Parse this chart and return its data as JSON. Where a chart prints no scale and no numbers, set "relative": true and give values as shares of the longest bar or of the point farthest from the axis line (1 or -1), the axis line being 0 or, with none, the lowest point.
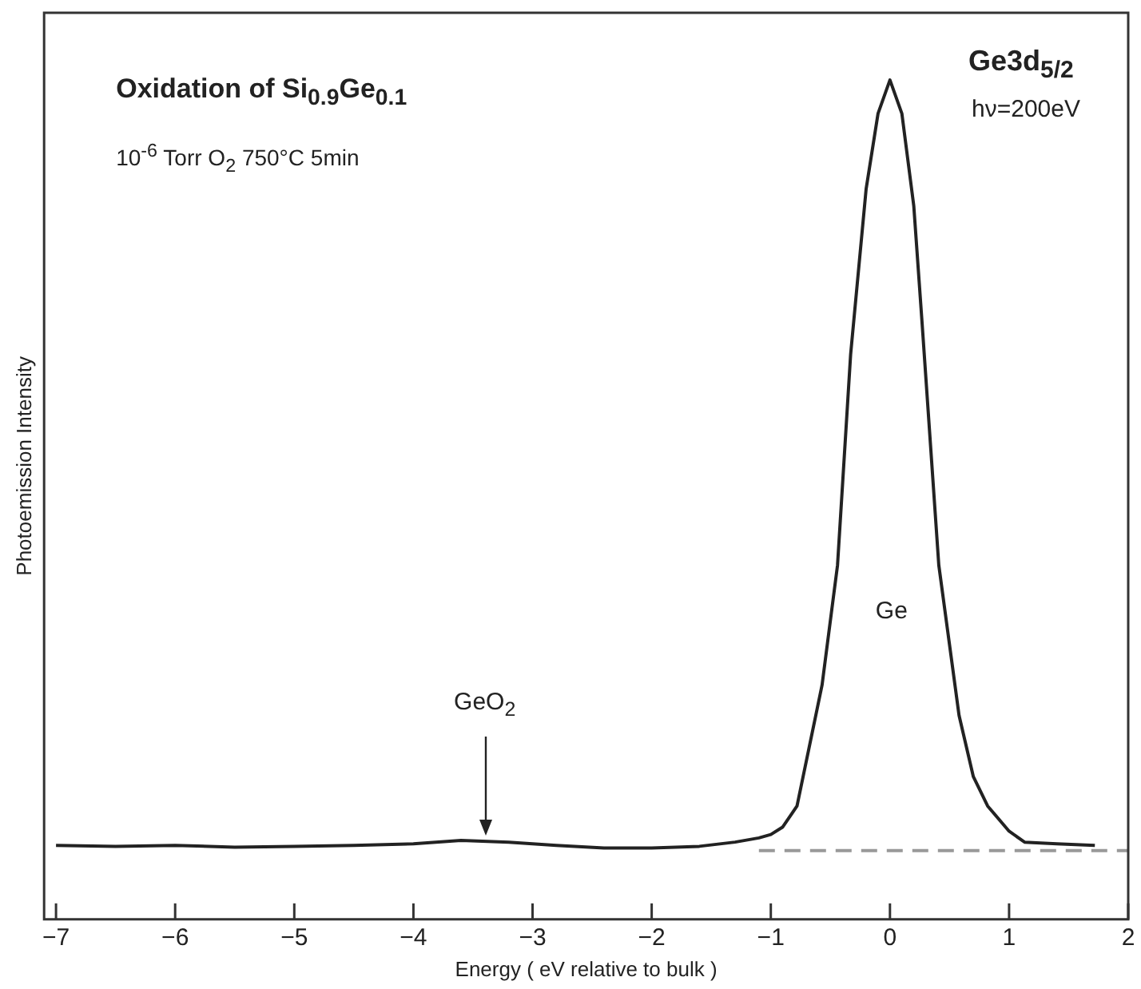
{
  "chart_data": {
    "type": "line",
    "title": "Oxidation of Si$_{0.9}$Ge$_{0.1}$",
    "subtitle": "10$^{-6}$ Torr O$_{2}$ 750°C 5min",
    "xlabel": "Energy ( eV relative to bulk )",
    "ylabel": "Photoemission Intensity",
    "relative": true,
    "xlim": [
      -7.1,
      2
    ],
    "xticks": [
      -7,
      -6,
      -5,
      -4,
      -3,
      -2,
      -1,
      0,
      1,
      2
    ],
    "legend": false,
    "grid": false,
    "marker": "none",
    "annotations": [
      "Ge3d$_{5/2}$",
      "hν=200eV",
      "Ge",
      "GeO$_{2}$"
    ],
    "series": [
      {
        "color": "#222222",
        "line_style": "solid",
        "x": [
          -7,
          -6.5,
          -6,
          -5.5,
          -5,
          -4.5,
          -4,
          -3.6,
          -3.2,
          -2.8,
          -2.4,
          -2,
          -1.6,
          -1.3,
          -1.1,
          -1,
          -0.9,
          -0.78,
          -0.57,
          -0.44,
          -0.33,
          -0.2,
          -0.1,
          0,
          0.1,
          0.2,
          0.27,
          0.41,
          0.58,
          0.7,
          0.82,
          1,
          1.13,
          1.4,
          1.72
        ],
        "values": [
          0.088,
          0.087,
          0.088,
          0.086,
          0.087,
          0.088,
          0.09,
          0.094,
          0.092,
          0.088,
          0.085,
          0.085,
          0.087,
          0.092,
          0.097,
          0.101,
          0.11,
          0.135,
          0.279,
          0.422,
          0.673,
          0.87,
          0.96,
          1,
          0.96,
          0.85,
          0.71,
          0.422,
          0.243,
          0.17,
          0.135,
          0.105,
          0.092,
          0.09,
          0.088
        ]
      },
      {
        "color": "#999999",
        "line_style": "dashed",
        "x": [
          -1.1,
          2
        ],
        "values": [
          0.082,
          0.082
        ]
      }
    ]
  }
}
